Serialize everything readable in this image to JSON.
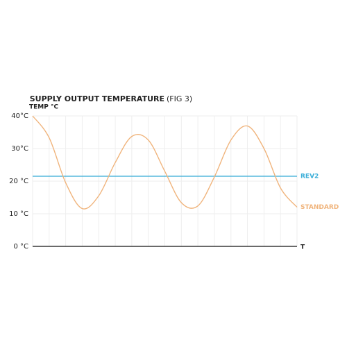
{
  "chart_data": {
    "type": "line",
    "title": "SUPPLY OUTPUT TEMPERATURE",
    "subtitle": "(FIG 3)",
    "y_label": "TEMP °C",
    "x_label": "T",
    "x": [
      0,
      1,
      2,
      3,
      4,
      5,
      6,
      7,
      8,
      9,
      10,
      11,
      12,
      13,
      14,
      15,
      16
    ],
    "xlim": [
      0,
      16
    ],
    "ylim": [
      0,
      40
    ],
    "yticks": [
      {
        "value": 0,
        "label": "0 °C"
      },
      {
        "value": 10,
        "label": "10 °C"
      },
      {
        "value": 20,
        "label": "20 °C"
      },
      {
        "value": 30,
        "label": "30°C"
      },
      {
        "value": 40,
        "label": "40°C"
      }
    ],
    "grid": true,
    "series": [
      {
        "name": "REV2",
        "color": "#3aaed8",
        "values": [
          21.5,
          21.5,
          21.5,
          21.5,
          21.5,
          21.5,
          21.5,
          21.5,
          21.5,
          21.5,
          21.5,
          21.5,
          21.5,
          21.5,
          21.5,
          21.5,
          21.5
        ]
      },
      {
        "name": "STANDARD",
        "color": "#f0b47c",
        "values": [
          40,
          33.3,
          19.5,
          11.6,
          15.5,
          25.7,
          33.7,
          32.6,
          23.0,
          13.4,
          12.4,
          21.3,
          32.6,
          36.9,
          30.0,
          17.9,
          12
        ]
      }
    ]
  }
}
